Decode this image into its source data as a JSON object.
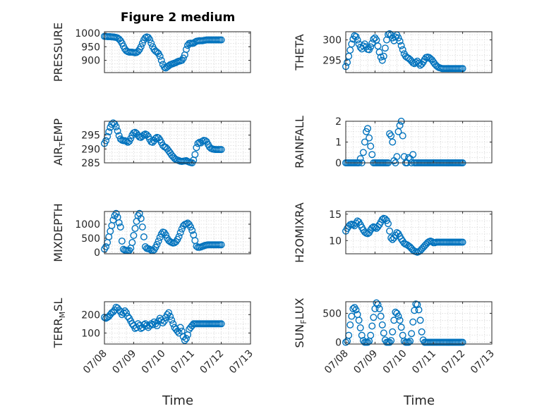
{
  "figure": {
    "title": "Figure 2 medium",
    "xlabel": "Time"
  },
  "x_ticks": [
    "07/08",
    "07/09",
    "07/10",
    "07/11",
    "07/12",
    "07/13"
  ],
  "colors": {
    "marker": "#0072bd",
    "axis": "#262626",
    "grid": "#d9d9d9"
  },
  "chart_data": [
    {
      "type": "scatter",
      "ylabel": "PRESSURE",
      "title": "Figure 2 medium",
      "xlim": [
        0,
        5
      ],
      "ylim": [
        855,
        1005
      ],
      "yticks": [
        900,
        950,
        1000
      ],
      "x": [
        0,
        0.05,
        0.1,
        0.15,
        0.2,
        0.25,
        0.3,
        0.35,
        0.4,
        0.45,
        0.5,
        0.55,
        0.6,
        0.65,
        0.7,
        0.75,
        0.8,
        0.85,
        0.9,
        0.95,
        1.0,
        1.05,
        1.1,
        1.15,
        1.2,
        1.25,
        1.3,
        1.35,
        1.4,
        1.45,
        1.5,
        1.55,
        1.6,
        1.65,
        1.7,
        1.75,
        1.8,
        1.85,
        1.9,
        1.95,
        2.0,
        2.05,
        2.1,
        2.15,
        2.2,
        2.25,
        2.3,
        2.35,
        2.4,
        2.45,
        2.5,
        2.55,
        2.6,
        2.65,
        2.7,
        2.75,
        2.8,
        2.85,
        2.9,
        2.95,
        3.0,
        3.05,
        3.1,
        3.15,
        3.2,
        3.25,
        3.3,
        3.35,
        3.4,
        3.45,
        3.5,
        3.55,
        3.6,
        3.65,
        3.7,
        3.75,
        3.8,
        3.85,
        3.9,
        3.95,
        4.0
      ],
      "y": [
        988,
        988,
        987,
        987,
        987,
        986,
        986,
        985,
        984,
        982,
        978,
        972,
        963,
        952,
        942,
        935,
        932,
        930,
        930,
        930,
        929,
        928,
        929,
        933,
        940,
        950,
        963,
        975,
        983,
        986,
        984,
        976,
        963,
        950,
        940,
        934,
        930,
        925,
        915,
        900,
        885,
        875,
        872,
        876,
        880,
        884,
        886,
        888,
        890,
        892,
        895,
        897,
        898,
        900,
        908,
        920,
        940,
        955,
        962,
        963,
        962,
        963,
        967,
        970,
        971,
        972,
        972,
        972,
        973,
        974,
        975,
        975,
        975,
        975,
        975,
        975,
        975,
        975,
        975,
        975,
        975
      ]
    },
    {
      "type": "scatter",
      "ylabel": "THETA",
      "xlim": [
        0,
        5
      ],
      "ylim": [
        292,
        302
      ],
      "yticks": [
        295,
        300
      ],
      "x": [
        0,
        0.05,
        0.1,
        0.15,
        0.2,
        0.25,
        0.3,
        0.35,
        0.4,
        0.45,
        0.5,
        0.55,
        0.6,
        0.65,
        0.7,
        0.75,
        0.8,
        0.85,
        0.9,
        0.95,
        1.0,
        1.05,
        1.1,
        1.15,
        1.2,
        1.25,
        1.3,
        1.35,
        1.4,
        1.45,
        1.5,
        1.55,
        1.6,
        1.65,
        1.7,
        1.75,
        1.8,
        1.85,
        1.9,
        1.95,
        2.0,
        2.05,
        2.1,
        2.15,
        2.2,
        2.25,
        2.3,
        2.35,
        2.4,
        2.45,
        2.5,
        2.55,
        2.6,
        2.65,
        2.7,
        2.75,
        2.8,
        2.85,
        2.9,
        2.95,
        3.0,
        3.05,
        3.1,
        3.15,
        3.2,
        3.25,
        3.3,
        3.35,
        3.4,
        3.45,
        3.5,
        3.55,
        3.6,
        3.65,
        3.7,
        3.75,
        3.8,
        3.85,
        3.9,
        3.95,
        4.0
      ],
      "y": [
        293.5,
        294.5,
        296,
        297.5,
        299,
        300.2,
        301,
        300.8,
        300,
        299,
        298.2,
        297.8,
        298.5,
        299,
        298.3,
        297.7,
        297.6,
        298.3,
        299.2,
        300.2,
        300.5,
        300,
        298.5,
        297,
        295.8,
        295,
        296,
        298,
        300,
        301.3,
        301.5,
        301.2,
        300.5,
        299.8,
        300.7,
        301.2,
        300.5,
        299.7,
        298.6,
        297.6,
        296.6,
        296,
        295.7,
        295.5,
        295.2,
        294.8,
        294.4,
        294.2,
        294.5,
        294.8,
        294.3,
        293.8,
        294.1,
        294.6,
        295.2,
        295.7,
        295.8,
        295.7,
        295.4,
        295.1,
        294.6,
        294.1,
        293.7,
        293.4,
        293.2,
        293.1,
        293.0,
        293.0,
        293.0,
        293.0,
        293.0,
        293.0,
        293.0,
        293.0,
        293.0,
        293.0,
        293.0,
        293.0,
        293.0,
        293.0,
        293.0
      ]
    },
    {
      "type": "scatter",
      "ylabel": "AIR_TEMP",
      "xlim": [
        0,
        5
      ],
      "ylim": [
        285,
        300
      ],
      "yticks": [
        285,
        290,
        295
      ],
      "x": [
        0,
        0.05,
        0.1,
        0.15,
        0.2,
        0.25,
        0.3,
        0.35,
        0.4,
        0.45,
        0.5,
        0.55,
        0.6,
        0.65,
        0.7,
        0.75,
        0.8,
        0.85,
        0.9,
        0.95,
        1.0,
        1.05,
        1.1,
        1.15,
        1.2,
        1.25,
        1.3,
        1.35,
        1.4,
        1.45,
        1.5,
        1.55,
        1.6,
        1.65,
        1.7,
        1.75,
        1.8,
        1.85,
        1.9,
        1.95,
        2.0,
        2.05,
        2.1,
        2.15,
        2.2,
        2.25,
        2.3,
        2.35,
        2.4,
        2.45,
        2.5,
        2.55,
        2.6,
        2.65,
        2.7,
        2.75,
        2.8,
        2.85,
        2.9,
        2.95,
        3.0,
        3.05,
        3.1,
        3.15,
        3.2,
        3.25,
        3.3,
        3.35,
        3.4,
        3.45,
        3.5,
        3.55,
        3.6,
        3.65,
        3.7,
        3.75,
        3.8,
        3.85,
        3.9,
        3.95,
        4.0
      ],
      "y": [
        292,
        293,
        294.5,
        296.2,
        297.8,
        298.9,
        299.4,
        299,
        298,
        296.5,
        294.8,
        293.6,
        293.2,
        293,
        293,
        292.8,
        292.4,
        292.8,
        293.8,
        295,
        295.8,
        296,
        295.6,
        294.9,
        294.3,
        294.2,
        294.6,
        295.1,
        295.4,
        295.1,
        294.5,
        293.5,
        292.6,
        292.4,
        293,
        293.8,
        294.2,
        294,
        293.3,
        292.3,
        291.3,
        290.8,
        290.6,
        290,
        289.3,
        288.6,
        287.8,
        287.2,
        286.6,
        286.2,
        286,
        285.8,
        285.6,
        285.5,
        285.6,
        285.7,
        285.8,
        285.5,
        285.3,
        285.1,
        285.0,
        286,
        288,
        290.5,
        292,
        292.4,
        292.2,
        292.8,
        293.1,
        293,
        292.6,
        291.6,
        290.7,
        290.2,
        290,
        289.9,
        289.8,
        289.8,
        289.8,
        289.8,
        289.8
      ]
    },
    {
      "type": "scatter",
      "ylabel": "RAINFALL",
      "xlim": [
        0,
        5
      ],
      "ylim": [
        0,
        2
      ],
      "yticks": [
        0,
        1,
        2
      ],
      "x": [
        0,
        0.05,
        0.1,
        0.15,
        0.2,
        0.25,
        0.3,
        0.35,
        0.4,
        0.45,
        0.5,
        0.55,
        0.6,
        0.65,
        0.7,
        0.75,
        0.8,
        0.85,
        0.9,
        0.95,
        1.0,
        1.05,
        1.1,
        1.15,
        1.2,
        1.25,
        1.3,
        1.35,
        1.4,
        1.45,
        1.5,
        1.55,
        1.6,
        1.65,
        1.7,
        1.75,
        1.8,
        1.85,
        1.9,
        1.95,
        2.0,
        2.05,
        2.1,
        2.15,
        2.2,
        2.25,
        2.3,
        2.35,
        2.4,
        2.45,
        2.5,
        2.55,
        2.6,
        2.65,
        2.7,
        2.75,
        2.8,
        2.85,
        2.9,
        2.95,
        3.0,
        3.05,
        3.1,
        3.15,
        3.2,
        3.25,
        3.3,
        3.35,
        3.4,
        3.45,
        3.5,
        3.55,
        3.6,
        3.65,
        3.7,
        3.75,
        3.8,
        3.85,
        3.9,
        3.95,
        4.0
      ],
      "y": [
        0,
        0,
        0,
        0,
        0,
        0,
        0,
        0,
        0,
        0,
        0.2,
        0,
        0.5,
        1.0,
        1.5,
        1.65,
        1.2,
        0.8,
        0.4,
        0,
        0,
        0,
        0,
        0,
        0,
        0,
        0,
        0,
        0,
        0,
        1.4,
        1.3,
        1.0,
        0.1,
        0,
        0.3,
        1.5,
        1.8,
        2.0,
        1.3,
        0.3,
        0,
        0,
        0.25,
        0.2,
        0,
        0.4,
        0,
        0,
        0,
        0,
        0,
        0,
        0,
        0,
        0,
        0,
        0,
        0,
        0,
        0,
        0,
        0,
        0,
        0,
        0,
        0,
        0,
        0,
        0,
        0,
        0,
        0,
        0,
        0,
        0,
        0,
        0,
        0,
        0,
        0
      ]
    },
    {
      "type": "scatter",
      "ylabel": "MIXDEPTH",
      "xlim": [
        0,
        5
      ],
      "ylim": [
        -50,
        1450
      ],
      "yticks": [
        0,
        500,
        1000
      ],
      "x": [
        0,
        0.05,
        0.1,
        0.15,
        0.2,
        0.25,
        0.3,
        0.35,
        0.4,
        0.45,
        0.5,
        0.55,
        0.6,
        0.65,
        0.7,
        0.75,
        0.8,
        0.85,
        0.9,
        0.95,
        1.0,
        1.05,
        1.1,
        1.15,
        1.2,
        1.25,
        1.3,
        1.35,
        1.4,
        1.45,
        1.5,
        1.55,
        1.6,
        1.65,
        1.7,
        1.75,
        1.8,
        1.85,
        1.9,
        1.95,
        2.0,
        2.05,
        2.1,
        2.15,
        2.2,
        2.25,
        2.3,
        2.35,
        2.4,
        2.45,
        2.5,
        2.55,
        2.6,
        2.65,
        2.7,
        2.75,
        2.8,
        2.85,
        2.9,
        2.95,
        3.0,
        3.05,
        3.1,
        3.15,
        3.2,
        3.25,
        3.3,
        3.35,
        3.4,
        3.45,
        3.5,
        3.55,
        3.6,
        3.65,
        3.7,
        3.75,
        3.8,
        3.85,
        3.9,
        3.95,
        4.0
      ],
      "y": [
        120,
        200,
        350,
        550,
        750,
        950,
        1150,
        1300,
        1380,
        1250,
        1050,
        900,
        400,
        110,
        80,
        70,
        60,
        70,
        150,
        350,
        600,
        850,
        1100,
        1300,
        1380,
        1200,
        900,
        550,
        200,
        140,
        130,
        110,
        80,
        60,
        90,
        180,
        280,
        400,
        530,
        650,
        720,
        700,
        620,
        500,
        420,
        380,
        350,
        330,
        340,
        380,
        460,
        560,
        700,
        830,
        940,
        990,
        1010,
        1040,
        990,
        900,
        780,
        620,
        420,
        220,
        180,
        180,
        190,
        210,
        230,
        250,
        260,
        270,
        270,
        270,
        270,
        270,
        270,
        270,
        270,
        270,
        270
      ]
    },
    {
      "type": "scatter",
      "ylabel": "H2OMIXRA",
      "xlim": [
        0,
        5
      ],
      "ylim": [
        7.5,
        15.5
      ],
      "yticks": [
        10,
        15
      ],
      "x": [
        0,
        0.05,
        0.1,
        0.15,
        0.2,
        0.25,
        0.3,
        0.35,
        0.4,
        0.45,
        0.5,
        0.55,
        0.6,
        0.65,
        0.7,
        0.75,
        0.8,
        0.85,
        0.9,
        0.95,
        1.0,
        1.05,
        1.1,
        1.15,
        1.2,
        1.25,
        1.3,
        1.35,
        1.4,
        1.45,
        1.5,
        1.55,
        1.6,
        1.65,
        1.7,
        1.75,
        1.8,
        1.85,
        1.9,
        1.95,
        2.0,
        2.05,
        2.1,
        2.15,
        2.2,
        2.25,
        2.3,
        2.35,
        2.4,
        2.45,
        2.5,
        2.55,
        2.6,
        2.65,
        2.7,
        2.75,
        2.8,
        2.85,
        2.9,
        2.95,
        3.0,
        3.05,
        3.1,
        3.15,
        3.2,
        3.25,
        3.3,
        3.35,
        3.4,
        3.45,
        3.5,
        3.55,
        3.6,
        3.65,
        3.7,
        3.75,
        3.8,
        3.85,
        3.9,
        3.95,
        4.0
      ],
      "y": [
        11.8,
        12.3,
        12.7,
        13.0,
        13.1,
        13.0,
        12.8,
        13.3,
        13.7,
        13.5,
        13.0,
        12.5,
        12.0,
        11.6,
        11.4,
        11.3,
        11.5,
        12.0,
        12.4,
        12.6,
        12.5,
        12.3,
        12.6,
        13.0,
        13.5,
        14.0,
        14.2,
        14.1,
        13.8,
        13.2,
        11.8,
        10.5,
        10.2,
        10.5,
        11.0,
        11.5,
        11.3,
        10.8,
        10.3,
        9.9,
        9.5,
        9.3,
        9.2,
        9.0,
        8.8,
        8.5,
        8.2,
        8.0,
        7.9,
        7.8,
        7.9,
        8.1,
        8.4,
        8.7,
        9.0,
        9.3,
        9.6,
        9.8,
        9.9,
        9.8,
        9.6,
        9.6,
        9.7,
        9.7,
        9.7,
        9.7,
        9.7,
        9.7,
        9.7,
        9.7,
        9.7,
        9.7,
        9.7,
        9.7,
        9.7,
        9.7,
        9.7,
        9.7,
        9.7,
        9.7,
        9.7
      ]
    },
    {
      "type": "scatter",
      "ylabel": "TERR_MSL",
      "xlim": [
        0,
        5
      ],
      "ylim": [
        40,
        270
      ],
      "yticks": [
        100,
        200
      ],
      "x": [
        0,
        0.05,
        0.1,
        0.15,
        0.2,
        0.25,
        0.3,
        0.35,
        0.4,
        0.45,
        0.5,
        0.55,
        0.6,
        0.65,
        0.7,
        0.75,
        0.8,
        0.85,
        0.9,
        0.95,
        1.0,
        1.05,
        1.1,
        1.15,
        1.2,
        1.25,
        1.3,
        1.35,
        1.4,
        1.45,
        1.5,
        1.55,
        1.6,
        1.65,
        1.7,
        1.75,
        1.8,
        1.85,
        1.9,
        1.95,
        2.0,
        2.05,
        2.1,
        2.15,
        2.2,
        2.25,
        2.3,
        2.35,
        2.4,
        2.45,
        2.5,
        2.55,
        2.6,
        2.65,
        2.7,
        2.75,
        2.8,
        2.85,
        2.9,
        2.95,
        3.0,
        3.05,
        3.1,
        3.15,
        3.2,
        3.25,
        3.3,
        3.35,
        3.4,
        3.45,
        3.5,
        3.55,
        3.6,
        3.65,
        3.7,
        3.75,
        3.8,
        3.85,
        3.9,
        3.95,
        4.0
      ],
      "y": [
        185,
        180,
        185,
        190,
        200,
        210,
        215,
        225,
        240,
        235,
        225,
        215,
        200,
        210,
        220,
        210,
        190,
        180,
        165,
        150,
        140,
        125,
        130,
        150,
        140,
        125,
        130,
        145,
        150,
        140,
        130,
        140,
        150,
        145,
        160,
        150,
        140,
        165,
        180,
        170,
        155,
        165,
        185,
        200,
        210,
        190,
        170,
        150,
        130,
        120,
        110,
        100,
        130,
        110,
        80,
        60,
        70,
        90,
        120,
        130,
        140,
        150,
        150,
        150,
        150,
        150,
        150,
        150,
        150,
        150,
        150,
        150,
        150,
        150,
        150,
        150,
        150,
        150,
        150,
        150,
        150
      ]
    },
    {
      "type": "scatter",
      "ylabel": "SUN_FLUX",
      "xlim": [
        0,
        5
      ],
      "ylim": [
        -30,
        700
      ],
      "yticks": [
        0,
        500
      ],
      "x": [
        0,
        0.05,
        0.1,
        0.15,
        0.2,
        0.25,
        0.3,
        0.35,
        0.4,
        0.45,
        0.5,
        0.55,
        0.6,
        0.65,
        0.7,
        0.75,
        0.8,
        0.85,
        0.9,
        0.95,
        1.0,
        1.05,
        1.1,
        1.15,
        1.2,
        1.25,
        1.3,
        1.35,
        1.4,
        1.45,
        1.5,
        1.55,
        1.6,
        1.65,
        1.7,
        1.75,
        1.8,
        1.85,
        1.9,
        1.95,
        2.0,
        2.05,
        2.1,
        2.15,
        2.2,
        2.25,
        2.3,
        2.35,
        2.4,
        2.45,
        2.5,
        2.55,
        2.6,
        2.65,
        2.7,
        2.75,
        2.8,
        2.85,
        2.9,
        2.95,
        3.0,
        3.05,
        3.1,
        3.15,
        3.2,
        3.25,
        3.3,
        3.35,
        3.4,
        3.45,
        3.5,
        3.55,
        3.6,
        3.65,
        3.7,
        3.75,
        3.8,
        3.85,
        3.9,
        3.95,
        4.0
      ],
      "y": [
        0,
        20,
        120,
        300,
        450,
        580,
        600,
        560,
        480,
        380,
        250,
        120,
        30,
        0,
        0,
        0,
        20,
        120,
        280,
        430,
        580,
        680,
        650,
        580,
        450,
        300,
        160,
        40,
        0,
        0,
        0,
        30,
        180,
        380,
        520,
        500,
        450,
        380,
        260,
        120,
        20,
        0,
        0,
        0,
        20,
        150,
        350,
        550,
        660,
        650,
        560,
        380,
        180,
        40,
        0,
        0,
        0,
        0,
        0,
        0,
        0,
        0,
        0,
        0,
        0,
        0,
        0,
        0,
        0,
        0,
        0,
        0,
        0,
        0,
        0,
        0,
        0,
        0,
        0,
        0,
        0
      ]
    }
  ]
}
